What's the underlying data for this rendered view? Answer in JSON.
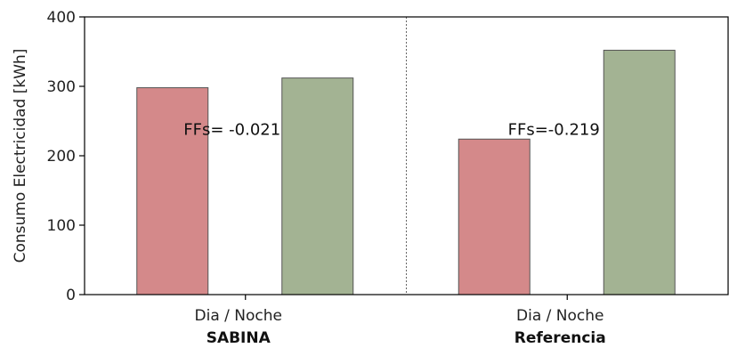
{
  "chart_data": {
    "type": "bar",
    "ylabel": "Consumo Electricidad [kWh]",
    "ylim": [
      0,
      400
    ],
    "yticks": [
      0,
      100,
      200,
      300,
      400
    ],
    "grid": false,
    "colors": {
      "dia": "#d4898a",
      "noche": "#a3b393"
    },
    "groups": [
      {
        "name": "SABINA",
        "category_label": "Dia / Noche",
        "values": [
          298,
          312
        ],
        "annotation": "FFs= -0.021"
      },
      {
        "name": "Referencia",
        "category_label": "Dia / Noche",
        "values": [
          224,
          352
        ],
        "annotation": "FFs=-0.219"
      }
    ]
  }
}
